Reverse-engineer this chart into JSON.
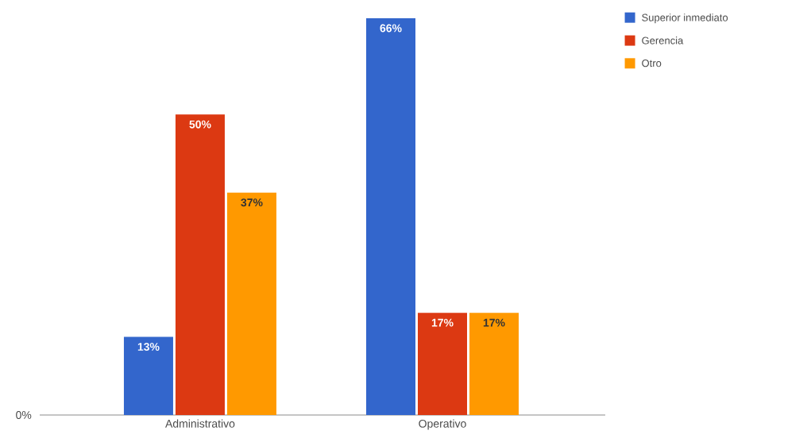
{
  "chart_data": {
    "type": "bar",
    "categories": [
      "Administrativo",
      "Operativo"
    ],
    "series": [
      {
        "name": "Superior inmediato",
        "color": "#3366cc",
        "values": [
          13,
          66
        ],
        "value_labels": [
          "13%",
          "66%"
        ]
      },
      {
        "name": "Gerencia",
        "color": "#dc3912",
        "values": [
          50,
          17
        ],
        "value_labels": [
          "50%",
          "17%"
        ]
      },
      {
        "name": "Otro",
        "color": "#ff9900",
        "values": [
          37,
          17
        ],
        "value_labels": [
          "37%",
          "17%"
        ]
      }
    ],
    "annotations": [
      "0%"
    ],
    "legend": "top right",
    "grid": false
  }
}
